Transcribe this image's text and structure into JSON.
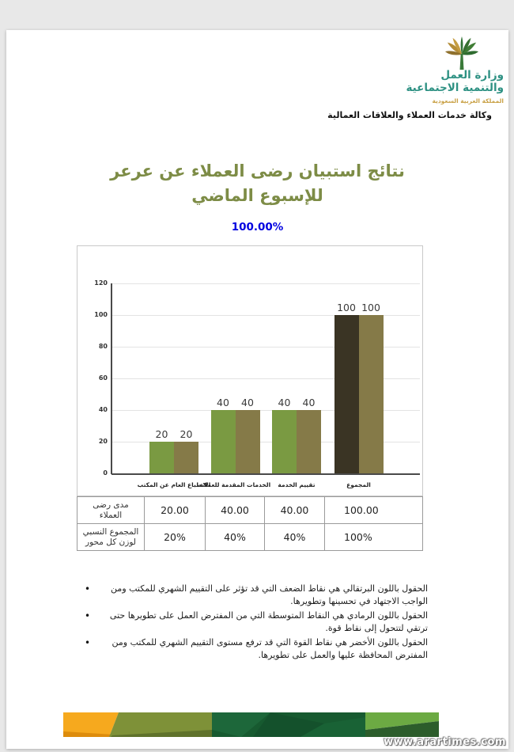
{
  "window": {
    "watermark": "www.arartimes.com"
  },
  "header": {
    "logo_icon": "palm-tree-logo",
    "ministry_name_line1": "وزارة العمل",
    "ministry_name_line2": "والتنمية الاجتماعية",
    "country": "المملكة العربية السعودية",
    "agency": "وكالة خدمات العملاء والعلاقات العمالية",
    "brand_teal": "#2e9183",
    "brand_gold": "#c9a146"
  },
  "report": {
    "title_line1": "نتائج استبيان رضى العملاء عن عرعر",
    "title_line2": "للإسبوع الماضي",
    "title_color": "#7d8c46",
    "overall_score": "100.00%",
    "score_color": "#0000e0"
  },
  "chart_data": {
    "type": "bar",
    "title": "",
    "xlabel": "",
    "ylabel": "",
    "categories": [
      "الانطباع العام عن المكتب",
      "الخدمات المقدمة للعملاء",
      "تقييم الخدمة",
      "المجموع"
    ],
    "series": [
      {
        "name": "مدى رضى العملاء",
        "values": [
          20,
          40,
          40,
          100
        ],
        "colors": [
          "#7a9a42",
          "#7a9a42",
          "#7a9a42",
          "#3a3424"
        ]
      },
      {
        "name": "المجموع النسبي لوزن كل محور",
        "values": [
          20,
          40,
          40,
          100
        ],
        "colors": [
          "#857a48",
          "#857a48",
          "#857a48",
          "#857a48"
        ]
      }
    ],
    "ylim": [
      0,
      120
    ],
    "yticks": [
      0,
      20,
      40,
      60,
      80,
      100,
      120
    ],
    "grid": true,
    "legend_position": "none",
    "value_labels": true
  },
  "table": {
    "rows": [
      {
        "label": "مدى رضى العملاء",
        "values": [
          "20.00",
          "40.00",
          "40.00",
          "100.00"
        ]
      },
      {
        "label": "المجموع النسبي لوزن كل محور",
        "values": [
          "20%",
          "40%",
          "40%",
          "100%"
        ]
      }
    ]
  },
  "notes": [
    "الحقول باللون البرتقالي هي نقاط الضعف التي قد تؤثر على التقييم الشهري للمكتب ومن الواجب الاجتهاد في تحسينها وتطويرها.",
    "الحقول باللون الرمادي هي النقاط المتوسطة التي من المفترض العمل على تطويرها حتى ترتقي لتتحول إلى نقاط قوة.",
    "الحقول باللون الأخضر هي نقاط القوة التي قد ترفع مستوى التقييم الشهري للمكتب ومن المفترض المحافظة عليها والعمل على تطويرها."
  ],
  "footer": {
    "stripe_colors": [
      "#f6a91e",
      "#7e9138",
      "#175a30",
      "#6caa43"
    ]
  }
}
